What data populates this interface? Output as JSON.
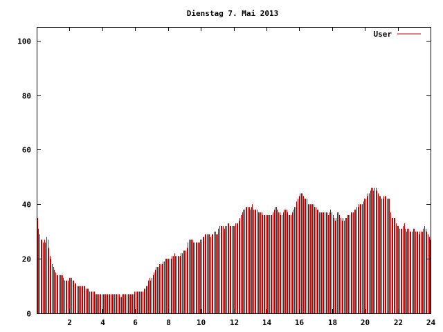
{
  "chart_data": {
    "type": "bar",
    "title": "Dienstag 7. Mai 2013",
    "xlabel": "",
    "ylabel": "",
    "xlim": [
      0,
      24
    ],
    "ylim": [
      0,
      105
    ],
    "x_ticks": [
      2,
      4,
      6,
      8,
      10,
      12,
      14,
      16,
      18,
      20,
      22,
      24
    ],
    "y_ticks": [
      0,
      20,
      40,
      60,
      80,
      100
    ],
    "x_tick_labels": [
      "2",
      "4",
      "6",
      "8",
      "10",
      "12",
      "14",
      "16",
      "18",
      "20",
      "22",
      "24"
    ],
    "y_tick_labels": [
      "0",
      "20",
      "40",
      "60",
      "80",
      "100"
    ],
    "grid": false,
    "legend": {
      "position": "top-right"
    },
    "colors": {
      "series": "#c00000",
      "axis": "#000000",
      "background": "#ffffff"
    },
    "series": [
      {
        "name": "User",
        "values": [
          35,
          31,
          29,
          27,
          27,
          26,
          27,
          26,
          28,
          27,
          24,
          21,
          20,
          18,
          17,
          16,
          15,
          14,
          14,
          14,
          14,
          14,
          14,
          13,
          12,
          12,
          12,
          12,
          13,
          13,
          13,
          12,
          12,
          11,
          11,
          10,
          10,
          10,
          10,
          10,
          10,
          10,
          10,
          9,
          9,
          9,
          8,
          8,
          8,
          8,
          8,
          7,
          7,
          7,
          7,
          7,
          7,
          7,
          7,
          7,
          7,
          7,
          7,
          7,
          7,
          7,
          7,
          7,
          7,
          7,
          7,
          7,
          7,
          6,
          6,
          7,
          7,
          7,
          7,
          7,
          7,
          7,
          7,
          7,
          7,
          7,
          8,
          8,
          8,
          8,
          8,
          8,
          8,
          8,
          9,
          9,
          10,
          10,
          12,
          13,
          12,
          13,
          14,
          15,
          16,
          17,
          17,
          17,
          18,
          18,
          18,
          19,
          19,
          20,
          20,
          20,
          20,
          20,
          20,
          21,
          21,
          22,
          21,
          21,
          21,
          21,
          21,
          22,
          22,
          23,
          23,
          23,
          24,
          26,
          27,
          27,
          27,
          27,
          26,
          26,
          26,
          26,
          26,
          26,
          27,
          27,
          28,
          28,
          29,
          29,
          29,
          29,
          29,
          28,
          29,
          29,
          30,
          30,
          29,
          29,
          31,
          32,
          32,
          32,
          32,
          31,
          32,
          32,
          33,
          33,
          32,
          32,
          32,
          32,
          32,
          33,
          33,
          33,
          34,
          35,
          36,
          37,
          38,
          38,
          39,
          39,
          39,
          39,
          38,
          39,
          40,
          38,
          38,
          38,
          38,
          37,
          37,
          37,
          37,
          36,
          36,
          36,
          36,
          36,
          36,
          36,
          36,
          36,
          37,
          38,
          39,
          39,
          38,
          37,
          37,
          36,
          36,
          37,
          38,
          38,
          38,
          37,
          36,
          36,
          36,
          37,
          38,
          39,
          39,
          41,
          42,
          43,
          44,
          44,
          44,
          43,
          42,
          42,
          42,
          40,
          40,
          40,
          40,
          40,
          40,
          39,
          39,
          38,
          38,
          37,
          37,
          37,
          37,
          37,
          37,
          37,
          37,
          36,
          37,
          38,
          37,
          36,
          35,
          34,
          35,
          37,
          37,
          36,
          35,
          34,
          35,
          34,
          35,
          35,
          36,
          36,
          36,
          37,
          37,
          37,
          38,
          38,
          39,
          39,
          40,
          40,
          40,
          40,
          41,
          42,
          42,
          43,
          44,
          44,
          45,
          46,
          46,
          45,
          46,
          46,
          45,
          44,
          43,
          43,
          42,
          42,
          43,
          43,
          43,
          42,
          42,
          42,
          37,
          35,
          35,
          35,
          35,
          33,
          32,
          32,
          31,
          31,
          31,
          32,
          33,
          31,
          30,
          31,
          31,
          30,
          30,
          30,
          31,
          31,
          30,
          30,
          30,
          29,
          30,
          30,
          30,
          31,
          32,
          31,
          30,
          29,
          28,
          27
        ]
      }
    ]
  }
}
